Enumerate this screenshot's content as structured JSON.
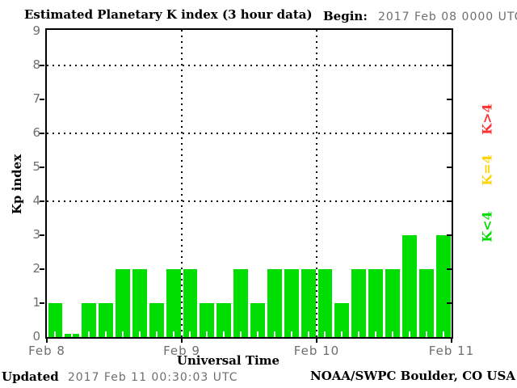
{
  "header": {
    "begin_label": "Begin:",
    "begin_value": "2017 Feb 08 0000 UTC"
  },
  "footer": {
    "updated_label": "Updated",
    "updated_value": "2017 Feb 11 00:30:03 UTC",
    "source": "NOAA/SWPC Boulder, CO USA"
  },
  "legend": [
    {
      "label": "K>4",
      "color": "#ff2f2f"
    },
    {
      "label": "K=4",
      "color": "#ffd300"
    },
    {
      "label": "K<4",
      "color": "#00dd00"
    }
  ],
  "chart_data": {
    "type": "bar",
    "title": "Estimated Planetary K index (3 hour data)",
    "xlabel": "Universal Time",
    "ylabel": "Kp index",
    "ylim": [
      0,
      9
    ],
    "ytick_labels": [
      "0",
      "1",
      "2",
      "3",
      "4",
      "5",
      "6",
      "7",
      "8",
      "9"
    ],
    "gridlines_y": [
      4,
      6,
      8
    ],
    "grid": "dotted horizontal at 4/6/8, dotted vertical at day boundaries",
    "legend_position": "right, rotated",
    "interval_hours": 3,
    "x_day_labels": [
      "Feb 8",
      "Feb 9",
      "Feb 10",
      "Feb 11"
    ],
    "bar_color": "#00dd00",
    "values": [
      1,
      0,
      1,
      1,
      2,
      2,
      1,
      2,
      2,
      1,
      1,
      2,
      1,
      2,
      2,
      2,
      2,
      1,
      2,
      2,
      2,
      3,
      2,
      3
    ]
  }
}
